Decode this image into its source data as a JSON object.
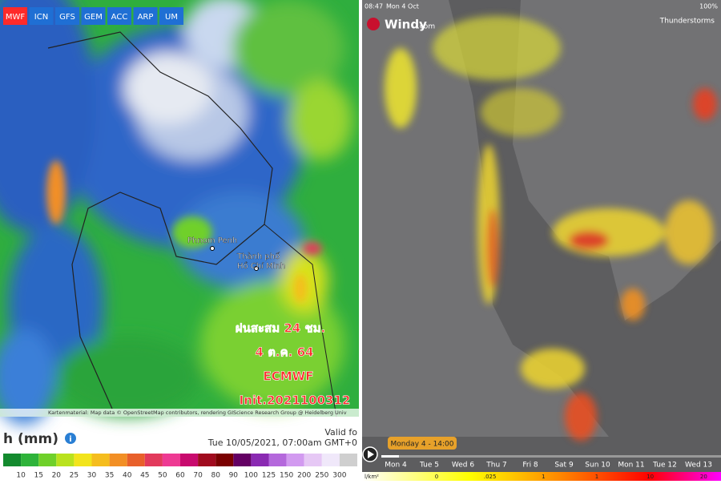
{
  "left": {
    "tabs": [
      "MWF",
      "ICN",
      "GFS",
      "GEM",
      "ACC",
      "ARP",
      "UM"
    ],
    "cities": [
      "Phnom Penh",
      "Thành phố",
      "Hồ Chí Minh"
    ],
    "overlay": [
      "ฝนสะสม 24 ชม.",
      "4 ต.ค. 64",
      "ECMWF",
      "Init.2021100312"
    ],
    "attribution": "Kartenmaterial: Map data © OpenStreetMap contributors, rendering GIScience Research Group @ Heidelberg Univ",
    "legend_title": "h (mm)",
    "valid": "Valid fo",
    "valid_time": "Tue 10/05/2021, 07:00am GMT+0",
    "scale_labels": [
      10,
      15,
      20,
      25,
      30,
      35,
      40,
      45,
      50,
      60,
      70,
      80,
      90,
      100,
      125,
      150,
      200,
      250,
      300
    ],
    "scale_colors": [
      "#138a2e",
      "#2eb33a",
      "#6fd02a",
      "#b9e21e",
      "#f2e41c",
      "#f5bd1e",
      "#f28f25",
      "#e8602b",
      "#e23a5c",
      "#ee3a93",
      "#c80a6e",
      "#a00a1e",
      "#7a0000",
      "#640064",
      "#8a2ab2",
      "#b468dc",
      "#d29af0",
      "#e6c8f5",
      "#f0e8fa",
      "#cfcfcf"
    ]
  },
  "right": {
    "time": "08:47",
    "date": "Mon 4 Oct",
    "brand": "Windy",
    "brand_suffix": ".com",
    "layer": "Thunderstorms",
    "battery": "100%",
    "current": "Monday 4 - 14:00",
    "days": [
      "Mon 4",
      "Tue 5",
      "Wed 6",
      "Thu 7",
      "Fri 8",
      "Sat 9",
      "Sun 10",
      "Mon 11",
      "Tue 12",
      "Wed 13"
    ],
    "unit": "l/km²",
    "legend": [
      "0",
      ".025",
      "1",
      "1",
      "10",
      "20"
    ]
  }
}
